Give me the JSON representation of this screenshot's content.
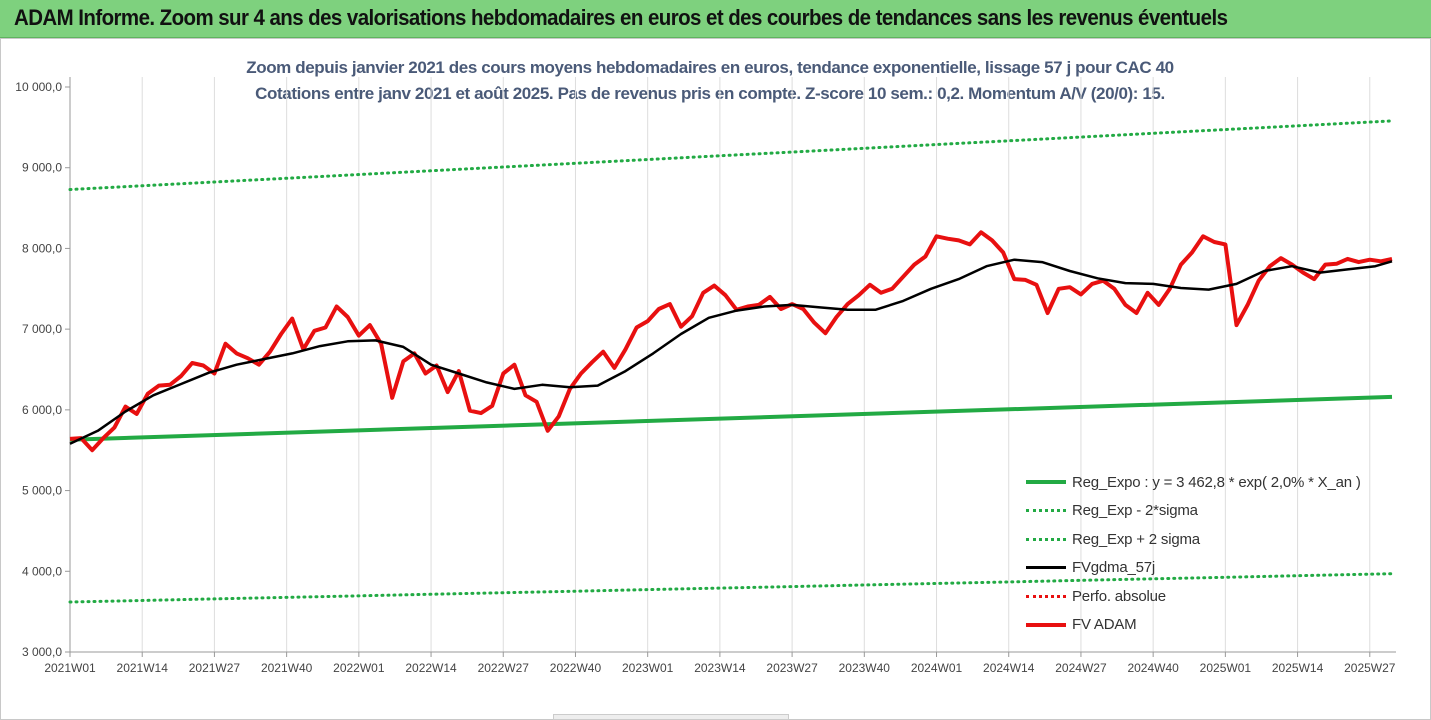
{
  "banner": {
    "title": "ADAM Informe. Zoom sur 4 ans des valorisations hebdomadaires en euros et des courbes de tendances sans les revenus éventuels"
  },
  "chart_data": {
    "type": "line",
    "title": "Zoom depuis janvier 2021 des cours moyens hebdomadaires en euros, tendance exponentielle, lissage 57 j pour CAC 40",
    "subtitle": "Cotations entre janv 2021 et août 2025.  Pas de revenus pris en compte. Z-score 10 sem.: 0,2. Momentum A/V (20/0): 15.",
    "ylim": [
      3000,
      10000
    ],
    "y_ticks": [
      "3 000,0",
      "4 000,0",
      "5 000,0",
      "6 000,0",
      "7 000,0",
      "8 000,0",
      "9 000,0",
      "10 000,0"
    ],
    "y_tick_values": [
      3000,
      4000,
      5000,
      6000,
      7000,
      8000,
      9000,
      10000
    ],
    "x_ticks": [
      "2021W01",
      "2021W14",
      "2021W27",
      "2021W40",
      "2022W01",
      "2022W14",
      "2022W27",
      "2022W40",
      "2023W01",
      "2023W14",
      "2023W27",
      "2023W40",
      "2024W01",
      "2024W14",
      "2024W27",
      "2024W40",
      "2025W01",
      "2025W14",
      "2025W27"
    ],
    "x_tick_index": [
      0,
      13,
      26,
      39,
      52,
      65,
      78,
      91,
      104,
      117,
      130,
      143,
      156,
      169,
      182,
      195,
      208,
      221,
      234
    ],
    "grid": "vertical",
    "legend_position": "bottom-right",
    "series": [
      {
        "name": "Reg_Expo : y = 3 462,8 * exp( 2,0% *  X_an )",
        "style": "solid-thick",
        "color": "#22aa44",
        "x_index": [
          0,
          238
        ],
        "values": [
          5630,
          6160
        ]
      },
      {
        "name": "Reg_Exp - 2*sigma",
        "style": "dotted",
        "color": "#22aa44",
        "x_index": [
          0,
          238
        ],
        "values": [
          3620,
          3970
        ]
      },
      {
        "name": "Reg_Exp + 2 sigma",
        "style": "dotted",
        "color": "#22aa44",
        "x_index": [
          0,
          238
        ],
        "values": [
          8730,
          9580
        ]
      },
      {
        "name": "FVgdma_57j",
        "style": "solid",
        "color": "#000000",
        "x_index": [
          0,
          5,
          10,
          15,
          20,
          25,
          30,
          35,
          40,
          45,
          50,
          55,
          60,
          65,
          70,
          75,
          80,
          85,
          90,
          95,
          100,
          105,
          110,
          115,
          120,
          125,
          130,
          135,
          140,
          145,
          150,
          155,
          160,
          165,
          170,
          175,
          180,
          185,
          190,
          195,
          200,
          205,
          210,
          215,
          220,
          225,
          230,
          235,
          238
        ],
        "values": [
          5580,
          5740,
          5980,
          6180,
          6320,
          6460,
          6560,
          6630,
          6700,
          6790,
          6850,
          6860,
          6780,
          6560,
          6450,
          6340,
          6260,
          6310,
          6280,
          6300,
          6480,
          6700,
          6940,
          7140,
          7230,
          7280,
          7300,
          7270,
          7240,
          7240,
          7350,
          7500,
          7620,
          7780,
          7860,
          7830,
          7720,
          7630,
          7570,
          7560,
          7510,
          7490,
          7560,
          7720,
          7780,
          7700,
          7740,
          7780,
          7840
        ]
      },
      {
        "name": "Perfo. absolue",
        "style": "dotted",
        "color": "#e81010",
        "x_index": [],
        "values": []
      },
      {
        "name": "FV ADAM",
        "style": "solid-thick",
        "color": "#e81010",
        "x_index": [
          0,
          2,
          4,
          6,
          8,
          10,
          12,
          14,
          16,
          18,
          20,
          22,
          24,
          26,
          28,
          30,
          32,
          34,
          36,
          38,
          40,
          42,
          44,
          46,
          48,
          50,
          52,
          54,
          56,
          58,
          60,
          62,
          64,
          66,
          68,
          70,
          72,
          74,
          76,
          78,
          80,
          82,
          84,
          86,
          88,
          90,
          92,
          94,
          96,
          98,
          100,
          102,
          104,
          106,
          108,
          110,
          112,
          114,
          116,
          118,
          120,
          122,
          124,
          126,
          128,
          130,
          132,
          134,
          136,
          138,
          140,
          142,
          144,
          146,
          148,
          150,
          152,
          154,
          156,
          158,
          160,
          162,
          164,
          166,
          168,
          170,
          172,
          174,
          176,
          178,
          180,
          182,
          184,
          186,
          188,
          190,
          192,
          194,
          196,
          198,
          200,
          202,
          204,
          206,
          208,
          210,
          212,
          214,
          216,
          218,
          220,
          222,
          224,
          226,
          228,
          230,
          232,
          234,
          236,
          238
        ],
        "values": [
          5640,
          5650,
          5500,
          5650,
          5780,
          6040,
          5950,
          6200,
          6300,
          6310,
          6420,
          6580,
          6550,
          6450,
          6820,
          6700,
          6640,
          6560,
          6720,
          6940,
          7130,
          6750,
          6980,
          7020,
          7280,
          7150,
          6920,
          7050,
          6820,
          6150,
          6600,
          6700,
          6450,
          6550,
          6220,
          6480,
          5990,
          5960,
          6050,
          6450,
          6560,
          6180,
          6100,
          5740,
          5920,
          6260,
          6450,
          6590,
          6720,
          6520,
          6750,
          7020,
          7100,
          7250,
          7310,
          7030,
          7160,
          7450,
          7540,
          7420,
          7240,
          7280,
          7300,
          7400,
          7250,
          7310,
          7250,
          7080,
          6950,
          7150,
          7310,
          7420,
          7550,
          7450,
          7500,
          7650,
          7800,
          7900,
          8150,
          8120,
          8100,
          8050,
          8200,
          8100,
          7950,
          7620,
          7610,
          7550,
          7200,
          7500,
          7520,
          7430,
          7560,
          7600,
          7500,
          7300,
          7200,
          7450,
          7300,
          7500,
          7800,
          7950,
          8150,
          8080,
          8050,
          7050,
          7300,
          7600,
          7780,
          7880,
          7800,
          7700,
          7620,
          7800,
          7810,
          7870,
          7830,
          7860,
          7840,
          7870
        ]
      }
    ]
  },
  "colors": {
    "banner_bg": "#7ed17e",
    "title_text": "#4a5a78",
    "green": "#22aa44",
    "red": "#e81010",
    "black": "#000000"
  }
}
